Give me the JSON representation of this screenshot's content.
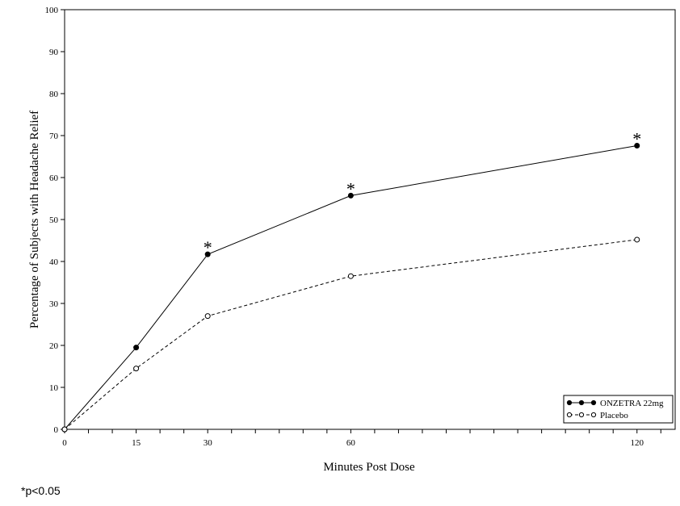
{
  "chart_data": {
    "type": "line",
    "title": "",
    "xlabel": "Minutes Post Dose",
    "ylabel": "Percentage of Subjects with Headache Relief",
    "xlim": [
      0,
      128
    ],
    "ylim": [
      0,
      100
    ],
    "x_ticks": [
      0,
      15,
      30,
      60,
      120
    ],
    "y_ticks": [
      0,
      10,
      20,
      30,
      40,
      50,
      60,
      70,
      80,
      90,
      100
    ],
    "grid": false,
    "legend_position": "bottom-right",
    "series": [
      {
        "name": "ONZETRA 22mg",
        "x": [
          0,
          15,
          30,
          60,
          120
        ],
        "y": [
          0,
          19.5,
          41.7,
          55.7,
          67.6
        ],
        "line_style": "solid",
        "marker": "filled-circle",
        "color": "#000000"
      },
      {
        "name": "Placebo",
        "x": [
          0,
          15,
          30,
          60,
          120
        ],
        "y": [
          0,
          14.5,
          27.0,
          36.5,
          45.2
        ],
        "line_style": "dashed",
        "marker": "open-circle",
        "color": "#000000"
      }
    ],
    "annotations": [
      {
        "x": 30,
        "y": 41.7,
        "text": "*"
      },
      {
        "x": 60,
        "y": 55.7,
        "text": "*"
      },
      {
        "x": 120,
        "y": 67.6,
        "text": "*"
      }
    ]
  },
  "footnote": "*p<0.05"
}
